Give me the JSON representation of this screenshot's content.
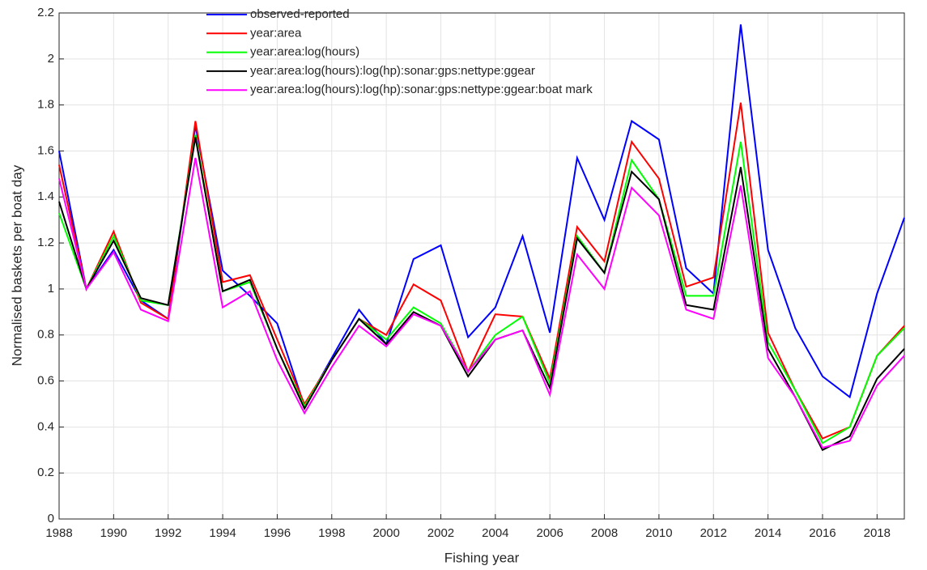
{
  "chart_data": {
    "type": "line",
    "x_label": "Fishing year",
    "y_label": "Normalised baskets per boat day",
    "x": [
      1988,
      1989,
      1990,
      1991,
      1992,
      1993,
      1994,
      1995,
      1996,
      1997,
      1998,
      1999,
      2000,
      2001,
      2002,
      2003,
      2004,
      2005,
      2006,
      2007,
      2008,
      2009,
      2010,
      2011,
      2012,
      2013,
      2014,
      2015,
      2016,
      2017,
      2018,
      2019
    ],
    "series": [
      {
        "name": "observed-reported",
        "color": "#0000ff",
        "values": [
          1.6,
          1.0,
          1.17,
          0.95,
          0.87,
          1.71,
          1.08,
          0.97,
          0.85,
          0.49,
          0.7,
          0.91,
          0.76,
          1.13,
          1.19,
          0.79,
          0.92,
          1.23,
          0.81,
          1.57,
          1.3,
          1.73,
          1.65,
          1.09,
          0.98,
          2.15,
          1.17,
          0.83,
          0.62,
          0.53,
          0.98,
          1.31
        ]
      },
      {
        "name": "year:area",
        "color": "#ff0000",
        "values": [
          1.54,
          1.0,
          1.25,
          0.94,
          0.87,
          1.73,
          1.03,
          1.06,
          0.78,
          0.5,
          0.69,
          0.87,
          0.8,
          1.02,
          0.95,
          0.64,
          0.89,
          0.88,
          0.61,
          1.27,
          1.12,
          1.64,
          1.48,
          1.01,
          1.05,
          1.81,
          0.81,
          0.56,
          0.35,
          0.4,
          0.71,
          0.84
        ]
      },
      {
        "name": "year:area:log(hours)",
        "color": "#00ff00",
        "values": [
          1.33,
          1.0,
          1.23,
          0.95,
          0.93,
          1.67,
          0.99,
          1.03,
          0.74,
          0.49,
          0.69,
          0.87,
          0.78,
          0.92,
          0.85,
          0.64,
          0.8,
          0.88,
          0.59,
          1.23,
          1.07,
          1.56,
          1.39,
          0.97,
          0.97,
          1.64,
          0.77,
          0.56,
          0.33,
          0.4,
          0.71,
          0.83
        ]
      },
      {
        "name": "year:area:log(hours):log(hp):sonar:gps:nettype:ggear",
        "color": "#000000",
        "values": [
          1.38,
          1.0,
          1.21,
          0.96,
          0.93,
          1.66,
          0.99,
          1.04,
          0.74,
          0.48,
          0.69,
          0.87,
          0.76,
          0.9,
          0.84,
          0.62,
          0.78,
          0.82,
          0.57,
          1.22,
          1.07,
          1.51,
          1.39,
          0.93,
          0.91,
          1.53,
          0.74,
          0.53,
          0.3,
          0.36,
          0.61,
          0.74
        ]
      },
      {
        "name": "year:area:log(hours):log(hp):sonar:gps:nettype:ggear:boat mark",
        "color": "#ff00ff",
        "values": [
          1.48,
          1.0,
          1.16,
          0.91,
          0.86,
          1.57,
          0.92,
          0.99,
          0.69,
          0.46,
          0.66,
          0.84,
          0.75,
          0.89,
          0.84,
          0.64,
          0.78,
          0.82,
          0.54,
          1.15,
          1.0,
          1.44,
          1.32,
          0.91,
          0.87,
          1.45,
          0.7,
          0.53,
          0.31,
          0.34,
          0.58,
          0.71
        ]
      }
    ],
    "xlim": [
      1988,
      2019
    ],
    "ylim": [
      0,
      2.2
    ],
    "xticks": [
      1988,
      1990,
      1992,
      1994,
      1996,
      1998,
      2000,
      2002,
      2004,
      2006,
      2008,
      2010,
      2012,
      2014,
      2016,
      2018
    ],
    "yticks": [
      0,
      0.2,
      0.4,
      0.6,
      0.8,
      1,
      1.2,
      1.4,
      1.6,
      1.8,
      2,
      2.2
    ],
    "grid": true,
    "legend": "top"
  }
}
